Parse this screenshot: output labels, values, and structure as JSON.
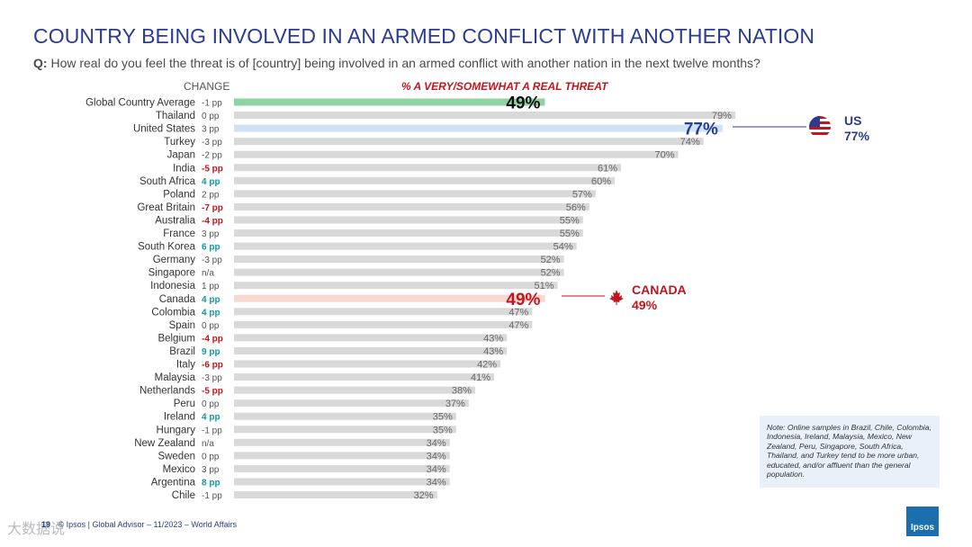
{
  "title": "COUNTRY BEING INVOLVED IN AN ARMED CONFLICT WITH ANOTHER NATION",
  "question_prefix": "Q:",
  "question": "How real do you feel the threat is of [country] being involved in an armed conflict with another nation in the next twelve months?",
  "change_header": "CHANGE",
  "metric_header": "% A VERY/SOMEWHAT A REAL THREAT",
  "colors": {
    "bar": "#d9d9d9",
    "global": "#8fd3a3",
    "us": "#cfe2f6",
    "canada": "#f8d8d0",
    "positive": "#0e9aa7",
    "negative": "#c0161e",
    "neutral": "#555555",
    "navy": "#2b3c8f"
  },
  "chart_data": {
    "type": "bar",
    "orientation": "horizontal",
    "title": "% A VERY/SOMEWHAT A REAL THREAT",
    "xlim": [
      0,
      100
    ],
    "categories": [
      "Global Country Average",
      "Thailand",
      "United States",
      "Turkey",
      "Japan",
      "India",
      "South Africa",
      "Poland",
      "Great Britain",
      "Australia",
      "France",
      "South Korea",
      "Germany",
      "Singapore",
      "Indonesia",
      "Canada",
      "Colombia",
      "Spain",
      "Belgium",
      "Brazil",
      "Italy",
      "Malaysia",
      "Netherlands",
      "Peru",
      "Ireland",
      "Hungary",
      "New Zealand",
      "Sweden",
      "Mexico",
      "Argentina",
      "Chile"
    ],
    "values": [
      49,
      79,
      77,
      74,
      70,
      61,
      60,
      57,
      56,
      55,
      55,
      54,
      52,
      52,
      51,
      49,
      47,
      47,
      43,
      43,
      42,
      41,
      38,
      37,
      35,
      35,
      34,
      34,
      34,
      34,
      32
    ],
    "value_labels": [
      "49%",
      "79%",
      "77%",
      "74%",
      "70%",
      "61%",
      "60%",
      "57%",
      "56%",
      "55%",
      "55%",
      "54%",
      "52%",
      "52%",
      "51%",
      "49%",
      "47%",
      "47%",
      "43%",
      "43%",
      "42%",
      "41%",
      "38%",
      "37%",
      "35%",
      "35%",
      "34%",
      "34%",
      "34%",
      "34%",
      "32%"
    ],
    "changes": [
      "-1 pp",
      "0 pp",
      "3 pp",
      "-3 pp",
      "-2 pp",
      "-5 pp",
      "4 pp",
      "2 pp",
      "-7 pp",
      "-4 pp",
      "3 pp",
      "6 pp",
      "-3 pp",
      "n/a",
      "1 pp",
      "4 pp",
      "4 pp",
      "0 pp",
      "-4 pp",
      "9 pp",
      "-6 pp",
      "-3 pp",
      "-5 pp",
      "0 pp",
      "4 pp",
      "-1 pp",
      "n/a",
      "0 pp",
      "3 pp",
      "8 pp",
      "-1 pp"
    ],
    "change_style": [
      "neutral",
      "neutral",
      "neutral",
      "neutral",
      "neutral",
      "negative",
      "positive",
      "neutral",
      "negative",
      "negative",
      "neutral",
      "positive",
      "neutral",
      "neutral",
      "neutral",
      "positive",
      "positive",
      "neutral",
      "negative",
      "positive",
      "negative",
      "neutral",
      "negative",
      "neutral",
      "positive",
      "neutral",
      "neutral",
      "neutral",
      "neutral",
      "positive",
      "neutral"
    ],
    "highlight": {
      "Global Country Average": "global",
      "United States": "us",
      "Canada": "canada"
    }
  },
  "callouts": {
    "us": {
      "country": "US",
      "value": "77%"
    },
    "canada": {
      "country": "CANADA",
      "value": "49%"
    }
  },
  "note": "Note: Online samples in Brazil, Chile, Colombia, Indonesia, Ireland, Malaysia, Mexico, New Zealand, Peru, Singapore, South Africa, Thailand, and Turkey tend to be more urban, educated, and/or affluent than the general population.",
  "footer": "© Ipsos | Global Advisor – 11/2023 – World Affairs",
  "page_number": "19",
  "watermark": "大数据说",
  "logo_text": "Ipsos"
}
